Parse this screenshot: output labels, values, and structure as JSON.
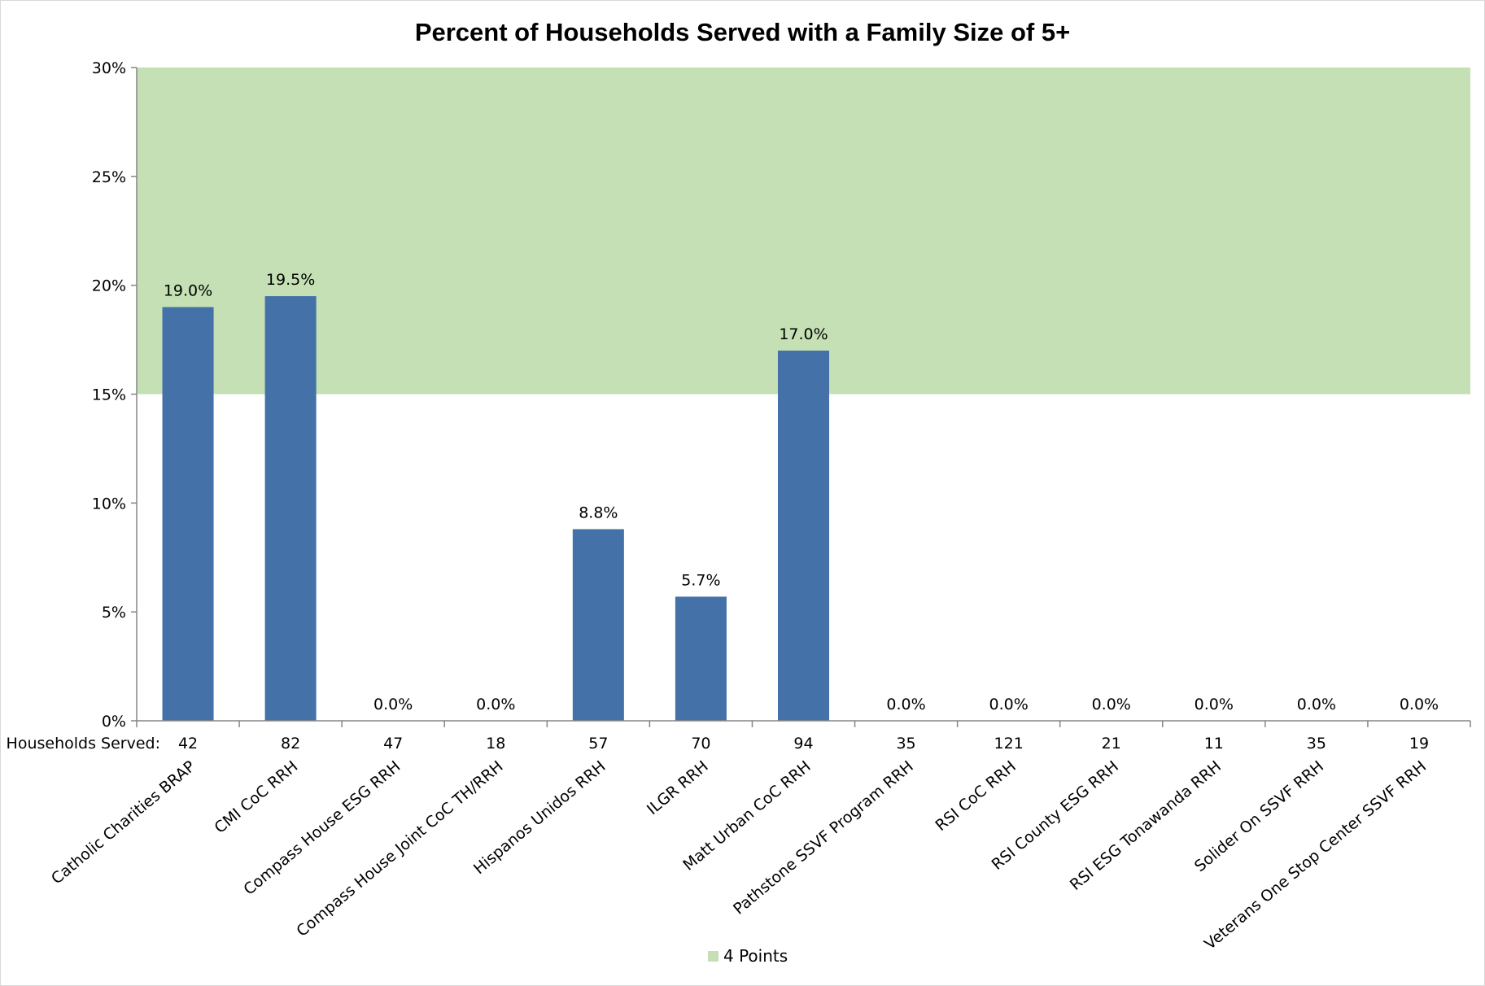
{
  "chart_data": {
    "type": "bar",
    "title": "Percent of Households Served with a Family Size of 5+",
    "row_label": "Households Served:",
    "categories": [
      "Catholic Charities BRAP",
      "CMI CoC RRH",
      "Compass House ESG RRH",
      "Compass House Joint CoC TH/RRH",
      "Hispanos Unidos RRH",
      "ILGR RRH",
      "Matt Urban CoC RRH",
      "Pathstone SSVF Program RRH",
      "RSI CoC RRH",
      "RSI County ESG RRH",
      "RSI ESG Tonawanda RRH",
      "Solider On SSVF RRH",
      "Veterans One Stop Center SSVF RRH"
    ],
    "values": [
      19.0,
      19.5,
      0.0,
      0.0,
      8.8,
      5.7,
      17.0,
      0.0,
      0.0,
      0.0,
      0.0,
      0.0,
      0.0
    ],
    "data_labels": [
      "19.0%",
      "19.5%",
      "0.0%",
      "0.0%",
      "8.8%",
      "5.7%",
      "17.0%",
      "0.0%",
      "0.0%",
      "0.0%",
      "0.0%",
      "0.0%",
      "0.0%"
    ],
    "households_served": [
      "42",
      "82",
      "47",
      "18",
      "57",
      "70",
      "94",
      "35",
      "121",
      "21",
      "11",
      "35",
      "19"
    ],
    "ylim": [
      0,
      30
    ],
    "yticks": [
      0,
      5,
      10,
      15,
      20,
      25,
      30
    ],
    "ytick_labels": [
      "0%",
      "5%",
      "10%",
      "15%",
      "20%",
      "25%",
      "30%"
    ],
    "band": {
      "name": "4 Points",
      "from": 15,
      "to": 30,
      "color": "#c4e0b4"
    },
    "bar_color": "#4472a8",
    "legend": {
      "label": "4 Points",
      "position": "bottom"
    },
    "grid": false
  }
}
